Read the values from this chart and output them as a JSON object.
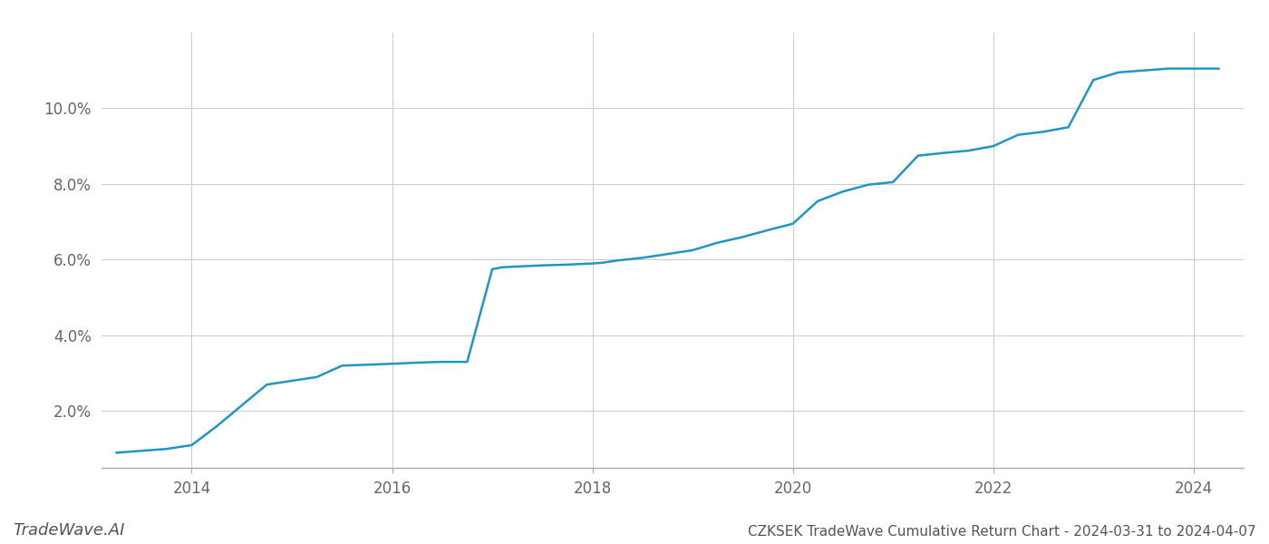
{
  "title": "CZKSEK TradeWave Cumulative Return Chart - 2024-03-31 to 2024-04-07",
  "watermark": "TradeWave.AI",
  "line_color": "#2196c4",
  "line_width": 1.8,
  "background_color": "#ffffff",
  "grid_color": "#cccccc",
  "x_values": [
    2013.25,
    2013.75,
    2014.0,
    2014.25,
    2014.75,
    2015.0,
    2015.25,
    2015.5,
    2016.0,
    2016.25,
    2016.5,
    2016.75,
    2017.0,
    2017.1,
    2017.25,
    2017.5,
    2017.75,
    2018.0,
    2018.1,
    2018.25,
    2018.5,
    2018.75,
    2019.0,
    2019.25,
    2019.5,
    2019.75,
    2020.0,
    2020.25,
    2020.5,
    2020.75,
    2021.0,
    2021.25,
    2021.5,
    2021.75,
    2022.0,
    2022.25,
    2022.5,
    2022.75,
    2023.0,
    2023.25,
    2023.5,
    2023.75,
    2024.0,
    2024.25
  ],
  "y_values": [
    0.9,
    1.0,
    1.1,
    1.6,
    2.7,
    2.8,
    2.9,
    3.2,
    3.25,
    3.28,
    3.3,
    3.3,
    5.75,
    5.8,
    5.82,
    5.85,
    5.87,
    5.9,
    5.92,
    5.98,
    6.05,
    6.15,
    6.25,
    6.45,
    6.6,
    6.78,
    6.95,
    7.55,
    7.8,
    7.98,
    8.05,
    8.75,
    8.82,
    8.88,
    9.0,
    9.3,
    9.38,
    9.5,
    10.75,
    10.95,
    11.0,
    11.05,
    11.05,
    11.05
  ],
  "xlim": [
    2013.1,
    2024.5
  ],
  "ylim": [
    0.5,
    12.0
  ],
  "xticks": [
    2014,
    2016,
    2018,
    2020,
    2022,
    2024
  ],
  "yticks": [
    2.0,
    4.0,
    6.0,
    8.0,
    10.0
  ],
  "ytick_labels": [
    "2.0%",
    "4.0%",
    "6.0%",
    "8.0%",
    "10.0%"
  ],
  "title_fontsize": 11,
  "tick_fontsize": 12,
  "watermark_fontsize": 13
}
